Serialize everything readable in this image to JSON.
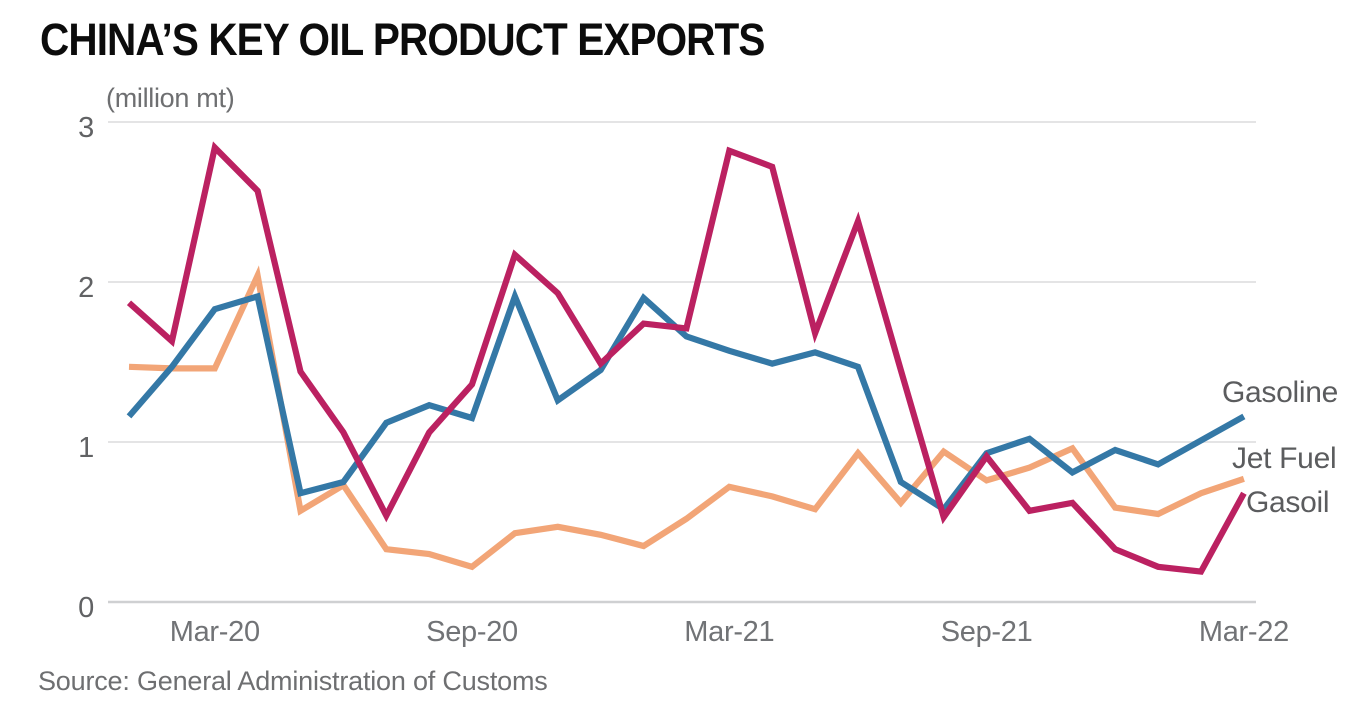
{
  "title": "CHINA’S KEY OIL PRODUCT EXPORTS",
  "unit_label": "(million mt)",
  "source": "Source: General Administration of Customs",
  "colors": {
    "gasoline": "#3478a6",
    "jet_fuel": "#f2a577",
    "gasoil": "#bb2161",
    "title_text": "#0c0c0c",
    "axis_text": "#717376",
    "label_text": "#5b5c5e",
    "gridline": "#e4e4e5",
    "baseline": "#cfd0d2",
    "background": "#ffffff"
  },
  "chart_data": {
    "type": "line",
    "title": "CHINA’S KEY OIL PRODUCT EXPORTS",
    "xlabel": "",
    "ylabel": "(million mt)",
    "ylim": [
      0,
      3
    ],
    "yticks": [
      0,
      1,
      2,
      3
    ],
    "xtick_labels": [
      "Mar-20",
      "Sep-20",
      "Mar-21",
      "Sep-21",
      "Mar-22"
    ],
    "grid": "horizontal",
    "legend_position": "right-line-end",
    "categories": [
      "Jan-20",
      "Feb-20",
      "Mar-20",
      "Apr-20",
      "May-20",
      "Jun-20",
      "Jul-20",
      "Aug-20",
      "Sep-20",
      "Oct-20",
      "Nov-20",
      "Dec-20",
      "Jan-21",
      "Feb-21",
      "Mar-21",
      "Apr-21",
      "May-21",
      "Jun-21",
      "Jul-21",
      "Aug-21",
      "Sep-21",
      "Oct-21",
      "Nov-21",
      "Dec-21",
      "Jan-22",
      "Feb-22",
      "Mar-22"
    ],
    "series": [
      {
        "name": "Gasoline",
        "color": "#3478a6",
        "values": [
          1.16,
          1.47,
          1.83,
          1.91,
          0.68,
          0.75,
          1.12,
          1.23,
          1.15,
          1.91,
          1.26,
          1.45,
          1.9,
          1.66,
          1.57,
          1.49,
          1.56,
          1.47,
          0.75,
          0.58,
          0.93,
          1.02,
          0.81,
          0.95,
          0.86,
          1.01,
          1.16
        ]
      },
      {
        "name": "Jet Fuel",
        "color": "#f2a577",
        "values": [
          1.47,
          1.46,
          1.46,
          2.04,
          0.57,
          0.73,
          0.33,
          0.3,
          0.22,
          0.43,
          0.47,
          0.42,
          0.35,
          0.52,
          0.72,
          0.66,
          0.58,
          0.93,
          0.62,
          0.94,
          0.76,
          0.84,
          0.96,
          0.59,
          0.55,
          0.68,
          0.77
        ]
      },
      {
        "name": "Gasoil",
        "color": "#bb2161",
        "values": [
          1.87,
          1.63,
          2.84,
          2.57,
          1.44,
          1.06,
          0.54,
          1.06,
          1.36,
          2.17,
          1.93,
          1.49,
          1.74,
          1.71,
          2.82,
          2.72,
          1.68,
          2.38,
          1.45,
          0.53,
          0.91,
          0.57,
          0.62,
          0.33,
          0.22,
          0.19,
          0.68
        ]
      }
    ]
  }
}
